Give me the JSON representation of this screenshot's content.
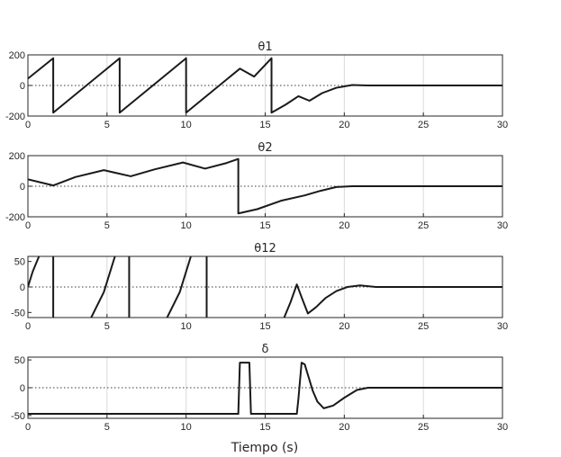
{
  "xlabel": "Tiempo (s)",
  "chart_data": [
    {
      "type": "line",
      "title": "θ1",
      "xlim": [
        0,
        30
      ],
      "ylim": [
        -200,
        200
      ],
      "xticks": [
        0,
        5,
        10,
        15,
        20,
        25,
        30
      ],
      "yticks": [
        200,
        0,
        -200
      ],
      "grid": "vertical",
      "zero_line": "dotted",
      "series": [
        {
          "x": [
            0,
            1.6,
            1.6,
            5.8,
            5.8,
            10.0,
            10.0,
            13.4,
            14.3,
            15.4,
            15.4,
            16.3,
            17.1,
            17.8,
            18.6,
            19.5,
            20.5,
            21.5,
            30
          ],
          "y": [
            45,
            178,
            -178,
            178,
            -178,
            178,
            -178,
            110,
            58,
            178,
            -178,
            -125,
            -70,
            -100,
            -50,
            -15,
            3,
            0,
            0
          ]
        }
      ]
    },
    {
      "type": "line",
      "title": "θ2",
      "xlim": [
        0,
        30
      ],
      "ylim": [
        -200,
        200
      ],
      "xticks": [
        0,
        5,
        10,
        15,
        20,
        25,
        30
      ],
      "yticks": [
        200,
        0,
        -200
      ],
      "grid": "vertical",
      "zero_line": "dotted",
      "series": [
        {
          "x": [
            0,
            0.8,
            1.6,
            3.0,
            4.8,
            6.5,
            8.0,
            9.8,
            11.2,
            12.5,
            13.3,
            13.3,
            14.5,
            16.0,
            17.5,
            18.5,
            19.5,
            20.5,
            30
          ],
          "y": [
            45,
            25,
            5,
            60,
            105,
            65,
            110,
            155,
            115,
            150,
            178,
            -178,
            -150,
            -95,
            -60,
            -30,
            -5,
            0,
            0
          ]
        }
      ]
    },
    {
      "type": "line",
      "title": "θ12",
      "xlim": [
        0,
        30
      ],
      "ylim": [
        -60,
        60
      ],
      "xticks": [
        0,
        5,
        10,
        15,
        20,
        25,
        30
      ],
      "yticks": [
        50,
        0,
        -50
      ],
      "grid": "vertical",
      "zero_line": "dotted",
      "series": [
        {
          "x": [
            0,
            0.3,
            0.7
          ],
          "y": [
            0,
            30,
            60
          ]
        },
        {
          "x": [
            1.6,
            1.6
          ],
          "y": [
            60,
            -60
          ]
        },
        {
          "x": [
            4.0,
            4.8,
            5.5
          ],
          "y": [
            -60,
            -10,
            60
          ]
        },
        {
          "x": [
            6.4,
            6.4
          ],
          "y": [
            60,
            -60
          ]
        },
        {
          "x": [
            8.8,
            9.6,
            10.3
          ],
          "y": [
            -60,
            -10,
            60
          ]
        },
        {
          "x": [
            11.3,
            11.3
          ],
          "y": [
            60,
            -60
          ]
        },
        {
          "x": [
            16.2,
            16.6,
            17.0,
            17.3,
            17.7,
            18.2,
            18.8,
            19.5,
            20.2,
            21.0,
            22.0,
            30
          ],
          "y": [
            -60,
            -30,
            5,
            -20,
            -52,
            -40,
            -22,
            -8,
            0,
            3,
            0,
            0
          ]
        }
      ]
    },
    {
      "type": "line",
      "title": "δ",
      "xlim": [
        0,
        30
      ],
      "ylim": [
        -55,
        55
      ],
      "xticks": [
        0,
        5,
        10,
        15,
        20,
        25,
        30
      ],
      "yticks": [
        50,
        0,
        -50
      ],
      "grid": "vertical",
      "zero_line": "dotted",
      "series": [
        {
          "x": [
            0,
            13.3,
            13.4,
            14.0,
            14.1,
            17.0,
            17.1,
            17.3,
            17.5,
            18.0,
            18.3,
            18.7,
            19.3,
            20.0,
            20.8,
            21.5,
            22.5,
            30
          ],
          "y": [
            -47,
            -47,
            45,
            45,
            -47,
            -47,
            -20,
            45,
            42,
            -5,
            -25,
            -37,
            -32,
            -18,
            -4,
            0,
            0,
            0
          ]
        }
      ]
    }
  ]
}
